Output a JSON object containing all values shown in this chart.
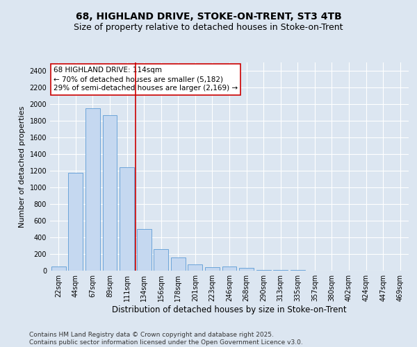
{
  "title1": "68, HIGHLAND DRIVE, STOKE-ON-TRENT, ST3 4TB",
  "title2": "Size of property relative to detached houses in Stoke-on-Trent",
  "xlabel": "Distribution of detached houses by size in Stoke-on-Trent",
  "ylabel": "Number of detached properties",
  "categories": [
    "22sqm",
    "44sqm",
    "67sqm",
    "89sqm",
    "111sqm",
    "134sqm",
    "156sqm",
    "178sqm",
    "201sqm",
    "223sqm",
    "246sqm",
    "268sqm",
    "290sqm",
    "313sqm",
    "335sqm",
    "357sqm",
    "380sqm",
    "402sqm",
    "424sqm",
    "447sqm",
    "469sqm"
  ],
  "values": [
    50,
    1175,
    1950,
    1870,
    1240,
    500,
    260,
    160,
    75,
    45,
    50,
    35,
    10,
    5,
    5,
    3,
    2,
    2,
    2,
    1,
    1
  ],
  "bar_color": "#c5d8f0",
  "bar_edge_color": "#5b9bd5",
  "vline_color": "#cc0000",
  "annotation_text": "68 HIGHLAND DRIVE: 114sqm\n← 70% of detached houses are smaller (5,182)\n29% of semi-detached houses are larger (2,169) →",
  "annotation_box_color": "#ffffff",
  "annotation_box_edge": "#cc0000",
  "ylim": [
    0,
    2500
  ],
  "yticks": [
    0,
    200,
    400,
    600,
    800,
    1000,
    1200,
    1400,
    1600,
    1800,
    2000,
    2200,
    2400
  ],
  "bg_color": "#dce6f1",
  "plot_bg_color": "#dce6f1",
  "footer": "Contains HM Land Registry data © Crown copyright and database right 2025.\nContains public sector information licensed under the Open Government Licence v3.0.",
  "title_fontsize": 10,
  "subtitle_fontsize": 9,
  "tick_fontsize": 7,
  "ylabel_fontsize": 8,
  "xlabel_fontsize": 8.5,
  "footer_fontsize": 6.5,
  "annotation_fontsize": 7.5
}
